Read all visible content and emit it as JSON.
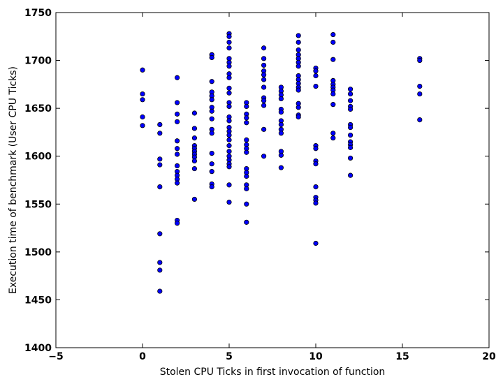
{
  "chart_data": {
    "type": "scatter",
    "xlabel": "Stolen CPU Ticks in first invocation of function",
    "ylabel": "Execution time of benchmark (User CPU Ticks)",
    "xlim": [
      -5,
      20
    ],
    "ylim": [
      1400,
      1750
    ],
    "xticks": [
      "−5",
      "0",
      "5",
      "10",
      "15",
      "20"
    ],
    "xtick_values": [
      -5,
      0,
      5,
      10,
      15,
      20
    ],
    "yticks": [
      "1400",
      "1450",
      "1500",
      "1550",
      "1600",
      "1650",
      "1700",
      "1750"
    ],
    "ytick_values": [
      1400,
      1450,
      1500,
      1550,
      1600,
      1650,
      1700,
      1750
    ],
    "grid": false,
    "legend": "none",
    "marker_color": "#0000ff",
    "marker_edge": "#000000",
    "points": [
      [
        0,
        1690
      ],
      [
        0,
        1665
      ],
      [
        0,
        1659
      ],
      [
        0,
        1641
      ],
      [
        0,
        1632
      ],
      [
        1,
        1633
      ],
      [
        1,
        1624
      ],
      [
        1,
        1597
      ],
      [
        1,
        1591
      ],
      [
        1,
        1568
      ],
      [
        1,
        1519
      ],
      [
        1,
        1489
      ],
      [
        1,
        1481
      ],
      [
        1,
        1459
      ],
      [
        2,
        1682
      ],
      [
        2,
        1656
      ],
      [
        2,
        1644
      ],
      [
        2,
        1636
      ],
      [
        2,
        1616
      ],
      [
        2,
        1608
      ],
      [
        2,
        1602
      ],
      [
        2,
        1590
      ],
      [
        2,
        1584
      ],
      [
        2,
        1580
      ],
      [
        2,
        1576
      ],
      [
        2,
        1572
      ],
      [
        2,
        1533
      ],
      [
        2,
        1530
      ],
      [
        3,
        1645
      ],
      [
        3,
        1629
      ],
      [
        3,
        1619
      ],
      [
        3,
        1611
      ],
      [
        3,
        1608
      ],
      [
        3,
        1605
      ],
      [
        3,
        1602
      ],
      [
        3,
        1599
      ],
      [
        3,
        1595
      ],
      [
        3,
        1587
      ],
      [
        3,
        1555
      ],
      [
        4,
        1706
      ],
      [
        4,
        1703
      ],
      [
        4,
        1678
      ],
      [
        4,
        1667
      ],
      [
        4,
        1663
      ],
      [
        4,
        1659
      ],
      [
        4,
        1651
      ],
      [
        4,
        1647
      ],
      [
        4,
        1639
      ],
      [
        4,
        1628
      ],
      [
        4,
        1624
      ],
      [
        4,
        1603
      ],
      [
        4,
        1592
      ],
      [
        4,
        1584
      ],
      [
        4,
        1571
      ],
      [
        4,
        1568
      ],
      [
        5,
        1728
      ],
      [
        5,
        1725
      ],
      [
        5,
        1719
      ],
      [
        5,
        1713
      ],
      [
        5,
        1702
      ],
      [
        5,
        1698
      ],
      [
        5,
        1694
      ],
      [
        5,
        1686
      ],
      [
        5,
        1682
      ],
      [
        5,
        1671
      ],
      [
        5,
        1666
      ],
      [
        5,
        1656
      ],
      [
        5,
        1652
      ],
      [
        5,
        1641
      ],
      [
        5,
        1637
      ],
      [
        5,
        1630
      ],
      [
        5,
        1626
      ],
      [
        5,
        1622
      ],
      [
        5,
        1617
      ],
      [
        5,
        1611
      ],
      [
        5,
        1605
      ],
      [
        5,
        1600
      ],
      [
        5,
        1596
      ],
      [
        5,
        1592
      ],
      [
        5,
        1589
      ],
      [
        5,
        1570
      ],
      [
        5,
        1552
      ],
      [
        6,
        1656
      ],
      [
        6,
        1652
      ],
      [
        6,
        1644
      ],
      [
        6,
        1640
      ],
      [
        6,
        1635
      ],
      [
        6,
        1617
      ],
      [
        6,
        1612
      ],
      [
        6,
        1608
      ],
      [
        6,
        1604
      ],
      [
        6,
        1587
      ],
      [
        6,
        1583
      ],
      [
        6,
        1579
      ],
      [
        6,
        1570
      ],
      [
        6,
        1566
      ],
      [
        6,
        1550
      ],
      [
        6,
        1531
      ],
      [
        7,
        1713
      ],
      [
        7,
        1702
      ],
      [
        7,
        1695
      ],
      [
        7,
        1689
      ],
      [
        7,
        1685
      ],
      [
        7,
        1680
      ],
      [
        7,
        1672
      ],
      [
        7,
        1661
      ],
      [
        7,
        1658
      ],
      [
        7,
        1653
      ],
      [
        7,
        1628
      ],
      [
        7,
        1600
      ],
      [
        8,
        1672
      ],
      [
        8,
        1668
      ],
      [
        8,
        1664
      ],
      [
        8,
        1660
      ],
      [
        8,
        1649
      ],
      [
        8,
        1646
      ],
      [
        8,
        1637
      ],
      [
        8,
        1633
      ],
      [
        8,
        1628
      ],
      [
        8,
        1624
      ],
      [
        8,
        1605
      ],
      [
        8,
        1601
      ],
      [
        8,
        1588
      ],
      [
        9,
        1726
      ],
      [
        9,
        1719
      ],
      [
        9,
        1711
      ],
      [
        9,
        1706
      ],
      [
        9,
        1702
      ],
      [
        9,
        1698
      ],
      [
        9,
        1694
      ],
      [
        9,
        1684
      ],
      [
        9,
        1680
      ],
      [
        9,
        1676
      ],
      [
        9,
        1672
      ],
      [
        9,
        1669
      ],
      [
        9,
        1655
      ],
      [
        9,
        1651
      ],
      [
        9,
        1643
      ],
      [
        9,
        1641
      ],
      [
        10,
        1692
      ],
      [
        10,
        1689
      ],
      [
        10,
        1684
      ],
      [
        10,
        1673
      ],
      [
        10,
        1611
      ],
      [
        10,
        1608
      ],
      [
        10,
        1595
      ],
      [
        10,
        1592
      ],
      [
        10,
        1568
      ],
      [
        10,
        1557
      ],
      [
        10,
        1554
      ],
      [
        10,
        1551
      ],
      [
        10,
        1509
      ],
      [
        11,
        1727
      ],
      [
        11,
        1719
      ],
      [
        11,
        1701
      ],
      [
        11,
        1679
      ],
      [
        11,
        1675
      ],
      [
        11,
        1672
      ],
      [
        11,
        1669
      ],
      [
        11,
        1665
      ],
      [
        11,
        1654
      ],
      [
        11,
        1624
      ],
      [
        11,
        1619
      ],
      [
        12,
        1670
      ],
      [
        12,
        1665
      ],
      [
        12,
        1658
      ],
      [
        12,
        1652
      ],
      [
        12,
        1649
      ],
      [
        12,
        1633
      ],
      [
        12,
        1630
      ],
      [
        12,
        1622
      ],
      [
        12,
        1615
      ],
      [
        12,
        1612
      ],
      [
        12,
        1609
      ],
      [
        12,
        1598
      ],
      [
        12,
        1580
      ],
      [
        16,
        1702
      ],
      [
        16,
        1700
      ],
      [
        16,
        1673
      ],
      [
        16,
        1665
      ],
      [
        16,
        1638
      ]
    ]
  }
}
